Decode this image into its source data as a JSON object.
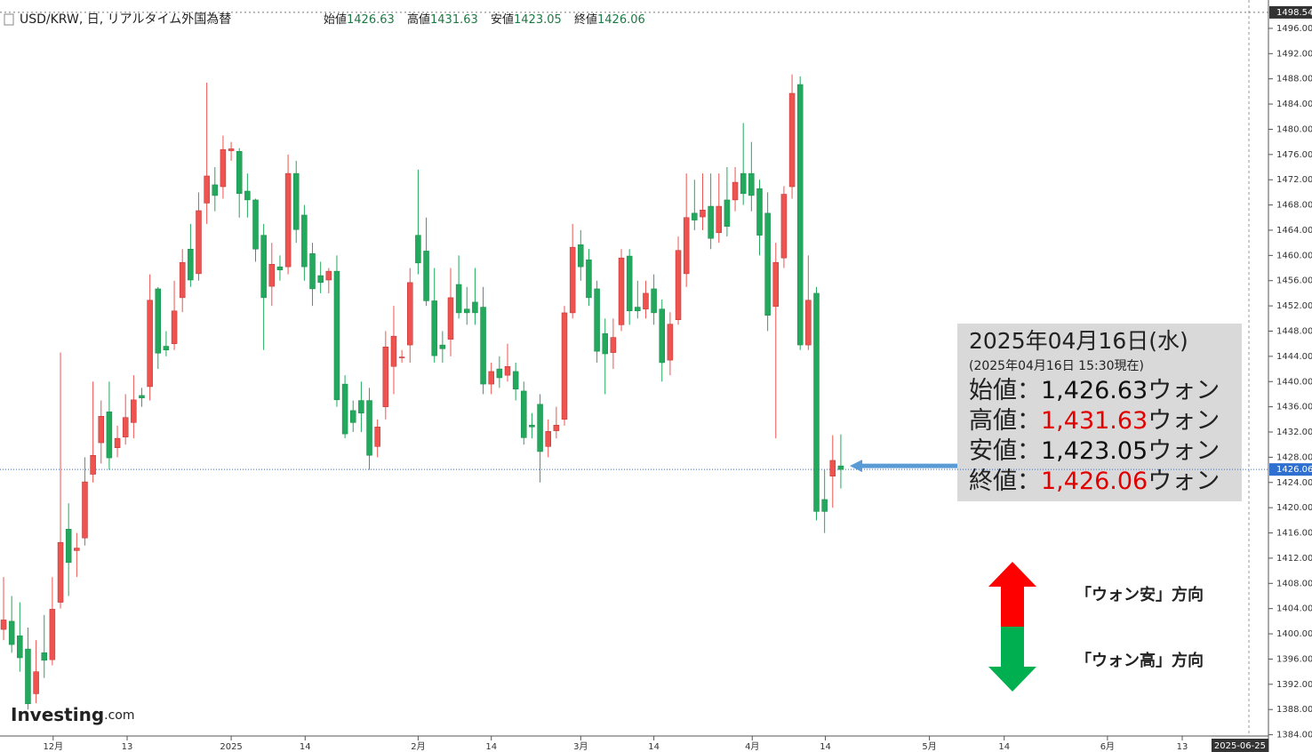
{
  "chart_data": {
    "type": "candlestick",
    "title": "USD/KRW, 日, リアルタイム外国為替",
    "header_values": [
      {
        "label": "始値",
        "value": 1426.63
      },
      {
        "label": "高値",
        "value": 1431.63
      },
      {
        "label": "安値",
        "value": 1423.05
      },
      {
        "label": "終値",
        "value": 1426.06
      }
    ],
    "up_color": "#ef5350",
    "down_color": "#22a95e",
    "open": [
      1400.7,
      1402,
      1399.7,
      1397.6,
      1390.5,
      1397,
      1395.9,
      1405,
      1416.6,
      1413.2,
      1415.2,
      1425.3,
      1430.3,
      1435.2,
      1429.5,
      1431.2,
      1433.5,
      1437.8,
      1439.2,
      1454.7,
      1445.6,
      1446,
      1453.3,
      1461,
      1457.1,
      1468.3,
      1471.2,
      1470.9,
      1476.6,
      1476.5,
      1470.2,
      1468.8,
      1463.2,
      1455.1,
      1458.2,
      1458.2,
      1473,
      1466.4,
      1460.3,
      1456.8,
      1456.1,
      1457.5,
      1439.6,
      1435.4,
      1437,
      1437,
      1429.7,
      1436,
      1442.4,
      1443.8,
      1445.8,
      1463.2,
      1460.7,
      1452.8,
      1445.8,
      1446.7,
      1455.4,
      1451.5,
      1452.6,
      1451.8,
      1439.6,
      1442,
      1441,
      1441.6,
      1438.5,
      1433.1,
      1436.4,
      1429.7,
      1432.2,
      1434,
      1450.9,
      1461.7,
      1459.3,
      1454.7,
      1447.6,
      1444.6,
      1449,
      1459.9,
      1451.8,
      1451.5,
      1454.7,
      1451.5,
      1443.4,
      1449.8,
      1457.1,
      1466.7,
      1466.1,
      1467.8,
      1463.6,
      1468.8,
      1468.8,
      1473,
      1473,
      1470.6,
      1466.7,
      1451.9,
      1459.6,
      1470.9,
      1487.1,
      1445.8,
      1454,
      1421.3,
      1425,
      1426.63
    ],
    "high": [
      1409,
      1406,
      1405,
      1401,
      1399,
      1403,
      1409,
      1444.6,
      1420.7,
      1416,
      1428,
      1440,
      1437,
      1440,
      1433,
      1438,
      1441,
      1439,
      1457,
      1455,
      1448,
      1456,
      1461,
      1465,
      1470,
      1487.4,
      1474,
      1479,
      1478,
      1477,
      1473,
      1469,
      1465,
      1462,
      1460,
      1476,
      1475,
      1468,
      1462,
      1459,
      1458,
      1460,
      1441,
      1437,
      1440,
      1439,
      1434,
      1448,
      1452,
      1445,
      1458,
      1473.6,
      1466,
      1458,
      1448,
      1458,
      1460,
      1455,
      1458,
      1455,
      1443,
      1444,
      1446,
      1443,
      1440,
      1435,
      1438,
      1434,
      1436,
      1452,
      1465,
      1464,
      1461,
      1456,
      1450,
      1450,
      1461,
      1461,
      1456,
      1456,
      1457,
      1453,
      1451,
      1463,
      1473,
      1472,
      1473,
      1473,
      1473,
      1474,
      1474,
      1481,
      1478,
      1472,
      1470,
      1462,
      1471,
      1488.7,
      1488.4,
      1460,
      1455,
      1426,
      1431.5,
      1431.63
    ],
    "low": [
      1399,
      1397,
      1394,
      1388,
      1389,
      1393,
      1395,
      1404,
      1406,
      1409,
      1414,
      1424,
      1427,
      1426,
      1428,
      1430,
      1431,
      1436,
      1437,
      1442,
      1444,
      1445,
      1451,
      1455,
      1456,
      1465,
      1467,
      1469,
      1475,
      1466,
      1466,
      1459,
      1445,
      1452,
      1456,
      1457,
      1462,
      1456,
      1452,
      1454,
      1454,
      1436,
      1431,
      1432,
      1432,
      1426,
      1428,
      1434,
      1438,
      1443,
      1443,
      1457,
      1452,
      1443,
      1443,
      1444,
      1450,
      1449,
      1449,
      1438,
      1438,
      1439,
      1440,
      1437,
      1430,
      1431,
      1424,
      1428,
      1431,
      1433,
      1450,
      1456,
      1452,
      1443,
      1438,
      1442,
      1448,
      1449,
      1450,
      1450,
      1449,
      1440,
      1441,
      1449,
      1455,
      1464,
      1464,
      1461,
      1462,
      1463,
      1467,
      1468,
      1467,
      1460,
      1448,
      1431,
      1458,
      1469,
      1445,
      1445,
      1418,
      1416,
      1420,
      1423.05
    ],
    "close": [
      1402.2,
      1398.3,
      1396.2,
      1388.9,
      1394,
      1395.8,
      1403.9,
      1414.5,
      1411.3,
      1413.6,
      1424.1,
      1428.3,
      1434.5,
      1427.9,
      1431,
      1434.3,
      1437.1,
      1437.4,
      1452.9,
      1444.5,
      1445,
      1451.2,
      1458.9,
      1456.1,
      1467.1,
      1472.6,
      1469.5,
      1476.8,
      1476.9,
      1469.8,
      1468.8,
      1461,
      1453.3,
      1458.6,
      1457.7,
      1473,
      1464.1,
      1458.2,
      1454.7,
      1455.7,
      1457.5,
      1437.1,
      1431.7,
      1433.5,
      1435,
      1428.3,
      1432.8,
      1445.5,
      1447.2,
      1443.9,
      1455.7,
      1458.8,
      1452.8,
      1444.1,
      1445.2,
      1453.3,
      1450.9,
      1450.9,
      1450.9,
      1439.6,
      1441.6,
      1440.6,
      1442.4,
      1438.8,
      1431.1,
      1432.8,
      1428.9,
      1432.1,
      1433.1,
      1450.9,
      1461.3,
      1458.2,
      1453.3,
      1444.8,
      1444.4,
      1447,
      1459.6,
      1451.2,
      1451.2,
      1454,
      1450.9,
      1443,
      1449.1,
      1460.8,
      1466,
      1465.6,
      1467.2,
      1462.7,
      1467.8,
      1464.6,
      1471.6,
      1469.8,
      1469.5,
      1463.2,
      1450.5,
      1458.9,
      1469.7,
      1485.7,
      1445.8,
      1452.9,
      1419.4,
      1419.4,
      1427.5,
      1426.06
    ],
    "xlim": [
      -0.44,
      153.2
    ],
    "xticks": [
      {
        "value": 6.1,
        "label": "12月"
      },
      {
        "value": 15.2,
        "label": "13"
      },
      {
        "value": 28,
        "label": "2025"
      },
      {
        "value": 37.1,
        "label": "14"
      },
      {
        "value": 51,
        "label": "2月"
      },
      {
        "value": 60,
        "label": "14"
      },
      {
        "value": 71,
        "label": "3月"
      },
      {
        "value": 80,
        "label": "14"
      },
      {
        "value": 92.1,
        "label": "4月"
      },
      {
        "value": 101.1,
        "label": "14"
      },
      {
        "value": 113.9,
        "label": "5月"
      },
      {
        "value": 123.1,
        "label": "14"
      },
      {
        "value": 135.8,
        "label": "6月"
      },
      {
        "value": 145,
        "label": "13"
      }
    ],
    "cursor_date": {
      "value": 152.1,
      "label": "2025-06-25"
    },
    "ylim": [
      1383.8,
      1500.5
    ],
    "yticks": [
      {
        "value": 1384,
        "label": "1384.00"
      },
      {
        "value": 1388,
        "label": "1388.00"
      },
      {
        "value": 1392,
        "label": "1392.00"
      },
      {
        "value": 1396,
        "label": "1396.00"
      },
      {
        "value": 1400,
        "label": "1400.00"
      },
      {
        "value": 1404,
        "label": "1404.00"
      },
      {
        "value": 1408,
        "label": "1408.00"
      },
      {
        "value": 1412,
        "label": "1412.00"
      },
      {
        "value": 1416,
        "label": "1416.00"
      },
      {
        "value": 1420,
        "label": "1420.00"
      },
      {
        "value": 1424,
        "label": "1424.00"
      },
      {
        "value": 1428,
        "label": "1428.00"
      },
      {
        "value": 1432,
        "label": "1432.00"
      },
      {
        "value": 1436,
        "label": "1436.00"
      },
      {
        "value": 1440,
        "label": "1440.00"
      },
      {
        "value": 1444,
        "label": "1444.00"
      },
      {
        "value": 1448,
        "label": "1448.00"
      },
      {
        "value": 1452,
        "label": "1452.00"
      },
      {
        "value": 1456,
        "label": "1456.00"
      },
      {
        "value": 1460,
        "label": "1460.00"
      },
      {
        "value": 1464,
        "label": "1464.00"
      },
      {
        "value": 1468,
        "label": "1468.00"
      },
      {
        "value": 1472,
        "label": "1472.00"
      },
      {
        "value": 1476,
        "label": "1476.00"
      },
      {
        "value": 1480,
        "label": "1480.00"
      },
      {
        "value": 1484,
        "label": "1484.00"
      },
      {
        "value": 1488,
        "label": "1488.00"
      },
      {
        "value": 1492,
        "label": "1492.00"
      },
      {
        "value": 1496,
        "label": "1496.00"
      }
    ],
    "current_price": {
      "value": 1426.06,
      "label": "1426.06"
    },
    "top_price": {
      "value": 1498.54,
      "label": "1498.54"
    },
    "annotation": {
      "date": "2025年04月16日(水)",
      "as_of": "(2025年04月16日 15:30現在)",
      "rows": [
        {
          "label": "始値：",
          "value": 1426.63,
          "value_label": "1,426.63",
          "unit": "ウォン",
          "color": "#111111"
        },
        {
          "label": "高値：",
          "value": 1431.63,
          "value_label": "1,431.63",
          "unit": "ウォン",
          "color": "#e00000"
        },
        {
          "label": "安値：",
          "value": 1423.05,
          "value_label": "1,423.05",
          "unit": "ウォン",
          "color": "#111111"
        },
        {
          "label": "終値：",
          "value": 1426.06,
          "value_label": "1,426.06",
          "unit": "ウォン",
          "color": "#e00000"
        }
      ]
    },
    "direction_notes": [
      "「ウォン安」方向",
      "「ウォン高」方向"
    ],
    "source": {
      "name": "Investing",
      "suffix": ".com"
    }
  }
}
